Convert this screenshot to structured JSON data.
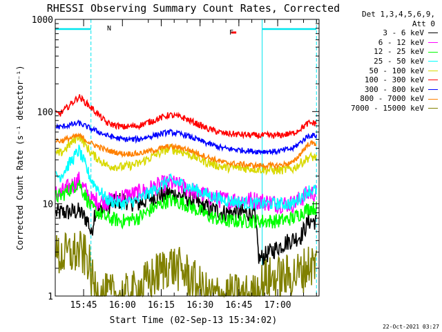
{
  "title": "RHESSI Observing Summary Count Rates, Corrected",
  "stamp": "22-Oct-2021 03:27",
  "legend": {
    "header_lines": [
      "Det 1,3,4,5,6,9,",
      "Att 0"
    ]
  },
  "annotations": {
    "night_marker": "N",
    "flare_marker": "F"
  },
  "colors": {
    "night": "#00e5ee",
    "flare": "#ff0000",
    "axis": "#000000"
  },
  "chart_data": {
    "type": "line",
    "title": "RHESSI Observing Summary Count Rates, Corrected",
    "xlabel": "Start Time (02-Sep-13 15:34:02)",
    "ylabel": "Corrected Count Rate (s⁻¹ detector⁻¹)",
    "yscale": "log",
    "ylim": [
      1,
      1000
    ],
    "xlim": [
      "15:34:02",
      "17:16:00"
    ],
    "x_ticks": [
      "15:45",
      "16:00",
      "16:15",
      "16:30",
      "16:45",
      "17:00"
    ],
    "y_ticks": [
      "1",
      "10",
      "100",
      "1000"
    ],
    "grid": false,
    "legend_position": "right",
    "night_intervals": [
      [
        "15:34:02",
        "15:47:50"
      ],
      [
        "16:54:00",
        "17:15:00"
      ]
    ],
    "flare_interval": [
      "16:42:00",
      "16:44:00"
    ],
    "series": [
      {
        "name": "3 - 6 keV",
        "color": "#000000",
        "baseline": [
          [
            15.6,
            8
          ],
          [
            15.72,
            8.3
          ],
          [
            15.78,
            6.5
          ],
          [
            15.8,
            4.5
          ],
          [
            15.82,
            8
          ],
          [
            15.9,
            9.5
          ],
          [
            16.0,
            11
          ],
          [
            16.1,
            10
          ],
          [
            16.2,
            12
          ],
          [
            16.3,
            13
          ],
          [
            16.4,
            12
          ],
          [
            16.55,
            9
          ],
          [
            16.65,
            8
          ],
          [
            16.85,
            8
          ],
          [
            16.88,
            2.5
          ],
          [
            17.05,
            3.8
          ],
          [
            17.15,
            4.5
          ],
          [
            17.2,
            6.5
          ]
        ],
        "noise": 0.1
      },
      {
        "name": "6 - 12 keV",
        "color": "#ff00ff",
        "baseline": [
          [
            15.6,
            13
          ],
          [
            15.72,
            18
          ],
          [
            15.8,
            11
          ],
          [
            15.9,
            10.5
          ],
          [
            16.0,
            12
          ],
          [
            16.1,
            13
          ],
          [
            16.2,
            15
          ],
          [
            16.3,
            17
          ],
          [
            16.4,
            15
          ],
          [
            16.55,
            12
          ],
          [
            16.65,
            11
          ],
          [
            16.85,
            11
          ],
          [
            17.0,
            10
          ],
          [
            17.1,
            10
          ],
          [
            17.2,
            13
          ]
        ],
        "noise": 0.1
      },
      {
        "name": "12 - 25 keV",
        "color": "#00ff00",
        "baseline": [
          [
            15.6,
            12
          ],
          [
            15.72,
            17
          ],
          [
            15.8,
            9
          ],
          [
            15.9,
            7
          ],
          [
            16.0,
            6.5
          ],
          [
            16.1,
            7
          ],
          [
            16.2,
            9
          ],
          [
            16.3,
            11
          ],
          [
            16.4,
            10
          ],
          [
            16.55,
            7.5
          ],
          [
            16.65,
            6.5
          ],
          [
            16.85,
            6.5
          ],
          [
            17.0,
            6.5
          ],
          [
            17.1,
            7
          ],
          [
            17.2,
            9
          ]
        ],
        "noise": 0.08
      },
      {
        "name": "25 - 50 keV",
        "color": "#00ffff",
        "baseline": [
          [
            15.6,
            20
          ],
          [
            15.72,
            38
          ],
          [
            15.8,
            18
          ],
          [
            15.9,
            11
          ],
          [
            16.0,
            10
          ],
          [
            16.1,
            11
          ],
          [
            16.2,
            14
          ],
          [
            16.3,
            18
          ],
          [
            16.4,
            16
          ],
          [
            16.55,
            12.5
          ],
          [
            16.65,
            11
          ],
          [
            16.85,
            10
          ],
          [
            17.0,
            10
          ],
          [
            17.1,
            10
          ],
          [
            17.2,
            14
          ]
        ],
        "noise": 0.07
      },
      {
        "name": "50 - 100 keV",
        "color": "#d9d900",
        "baseline": [
          [
            15.6,
            35
          ],
          [
            15.72,
            55
          ],
          [
            15.8,
            35
          ],
          [
            15.9,
            26
          ],
          [
            16.0,
            25
          ],
          [
            16.1,
            27
          ],
          [
            16.2,
            33
          ],
          [
            16.3,
            40
          ],
          [
            16.4,
            36
          ],
          [
            16.55,
            28
          ],
          [
            16.65,
            25
          ],
          [
            16.85,
            24
          ],
          [
            17.0,
            23
          ],
          [
            17.1,
            24
          ],
          [
            17.2,
            32
          ]
        ],
        "noise": 0.05
      },
      {
        "name": "100 - 300 keV",
        "color": "#ff0000",
        "baseline": [
          [
            15.6,
            95
          ],
          [
            15.72,
            145
          ],
          [
            15.8,
            110
          ],
          [
            15.9,
            75
          ],
          [
            16.0,
            68
          ],
          [
            16.1,
            70
          ],
          [
            16.2,
            80
          ],
          [
            16.3,
            92
          ],
          [
            16.4,
            85
          ],
          [
            16.55,
            65
          ],
          [
            16.65,
            58
          ],
          [
            16.85,
            55
          ],
          [
            17.0,
            55
          ],
          [
            17.1,
            58
          ],
          [
            17.2,
            75
          ]
        ],
        "noise": 0.035
      },
      {
        "name": "300 - 800 keV",
        "color": "#0000ff",
        "baseline": [
          [
            15.6,
            68
          ],
          [
            15.72,
            75
          ],
          [
            15.8,
            65
          ],
          [
            15.9,
            55
          ],
          [
            16.0,
            50
          ],
          [
            16.1,
            50
          ],
          [
            16.2,
            55
          ],
          [
            16.3,
            60
          ],
          [
            16.4,
            56
          ],
          [
            16.55,
            45
          ],
          [
            16.65,
            40
          ],
          [
            16.85,
            37
          ],
          [
            17.0,
            37
          ],
          [
            17.1,
            40
          ],
          [
            17.2,
            55
          ]
        ],
        "noise": 0.03
      },
      {
        "name": "800 - 7000 keV",
        "color": "#ff8000",
        "baseline": [
          [
            15.6,
            48
          ],
          [
            15.72,
            55
          ],
          [
            15.8,
            45
          ],
          [
            15.9,
            38
          ],
          [
            16.0,
            35
          ],
          [
            16.1,
            35
          ],
          [
            16.2,
            38
          ],
          [
            16.3,
            42
          ],
          [
            16.4,
            40
          ],
          [
            16.55,
            32
          ],
          [
            16.65,
            28
          ],
          [
            16.85,
            26
          ],
          [
            17.0,
            26
          ],
          [
            17.1,
            28
          ],
          [
            17.2,
            45
          ]
        ],
        "noise": 0.03
      },
      {
        "name": "7000 - 15000 keV",
        "color": "#808000",
        "baseline": [
          [
            15.6,
            2.7
          ],
          [
            15.72,
            3.0
          ],
          [
            15.78,
            2.5
          ],
          [
            15.8,
            1.5
          ],
          [
            15.85,
            1.0
          ],
          [
            16.05,
            1.0
          ],
          [
            16.2,
            1.6
          ],
          [
            16.3,
            2.2
          ],
          [
            16.4,
            1.8
          ],
          [
            16.55,
            1.0
          ],
          [
            16.85,
            1.0
          ],
          [
            16.92,
            1.5
          ],
          [
            17.05,
            1.6
          ],
          [
            17.15,
            1.8
          ],
          [
            17.2,
            2.2
          ]
        ],
        "noise": 0.25
      }
    ]
  }
}
